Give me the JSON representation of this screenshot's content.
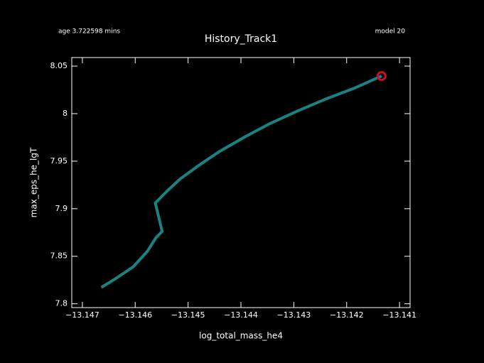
{
  "chart_data": {
    "type": "line",
    "title": "History_Track1",
    "subtitle_left": "age 3.722598 mins",
    "subtitle_right": "model 20",
    "x_label": "log_total_mass_he4",
    "y_label": "max_eps_he_lgT",
    "x": [
      -13.14664,
      -13.14636,
      -13.14604,
      -13.14577,
      -13.14561,
      -13.14549,
      -13.14562,
      -13.14541,
      -13.14515,
      -13.14476,
      -13.1444,
      -13.14393,
      -13.14345,
      -13.14292,
      -13.14238,
      -13.14185,
      -13.14134
    ],
    "series": [
      {
        "name": "track",
        "color": "#1a8282",
        "values": [
          7.8172,
          7.8269,
          7.8388,
          7.8552,
          7.8694,
          7.8761,
          7.906,
          7.9179,
          7.9313,
          7.947,
          7.9604,
          7.9754,
          7.9896,
          8.003,
          8.0157,
          8.0269,
          8.0396
        ]
      }
    ],
    "marker_color": "#c8102e",
    "xlim": [
      -13.1472,
      -13.1408
    ],
    "ylim": [
      7.796,
      8.059
    ],
    "xticks": [
      {
        "value": -13.147,
        "label": "−13.147"
      },
      {
        "value": -13.146,
        "label": "−13.146"
      },
      {
        "value": -13.145,
        "label": "−13.145"
      },
      {
        "value": -13.144,
        "label": "−13.144"
      },
      {
        "value": -13.143,
        "label": "−13.143"
      },
      {
        "value": -13.142,
        "label": "−13.142"
      },
      {
        "value": -13.141,
        "label": "−13.141"
      }
    ],
    "yticks": [
      7.8,
      7.85,
      7.9,
      7.95,
      8,
      8.05
    ]
  }
}
